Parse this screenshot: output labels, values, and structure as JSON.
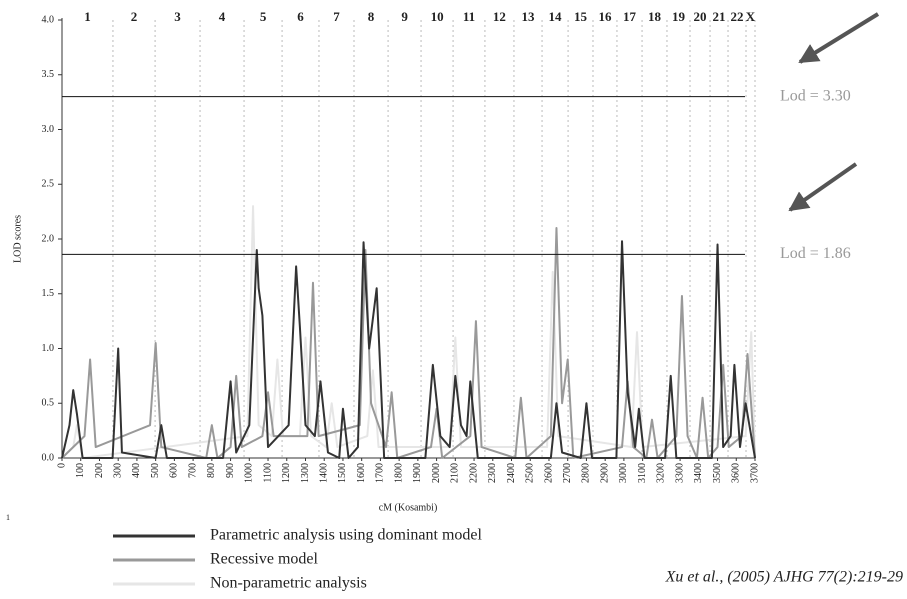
{
  "chart_data": {
    "type": "line",
    "xlabel": "cM (Kosambi)",
    "ylabel": "LOD scores",
    "xlim": [
      0,
      3700
    ],
    "ylim": [
      0,
      4.0
    ],
    "xticks": [
      0,
      100,
      200,
      300,
      400,
      500,
      600,
      700,
      800,
      900,
      1000,
      1100,
      1200,
      1300,
      1400,
      1500,
      1600,
      1700,
      1800,
      1900,
      2000,
      2100,
      2200,
      2300,
      2400,
      2500,
      2600,
      2700,
      2800,
      2900,
      3000,
      3100,
      3200,
      3300,
      3400,
      3500,
      3600,
      3700
    ],
    "yticks": [
      {
        "value": 0,
        "label": "0.0"
      },
      0.5,
      {
        "value": 1,
        "label": "1.0"
      },
      1.5,
      {
        "value": 2,
        "label": "2.0"
      },
      2.5,
      {
        "value": 3,
        "label": "3.0"
      },
      3.5,
      {
        "value": 4,
        "label": "4.0"
      }
    ],
    "chromosome_labels": [
      "1",
      "2",
      "3",
      "4",
      "5",
      "6",
      "7",
      "8",
      "9",
      "10",
      "11",
      "12",
      "13",
      "14",
      "15",
      "16",
      "17",
      "18",
      "19",
      "20",
      "21",
      "22",
      "X"
    ],
    "chromosome_bounds": [
      0,
      272,
      497,
      737,
      972,
      1175,
      1372,
      1559,
      1741,
      1917,
      2088,
      2258,
      2413,
      2563,
      2702,
      2835,
      2963,
      3097,
      3230,
      3353,
      3460,
      3556,
      3652,
      3700
    ],
    "thresholds": [
      {
        "value": 3.3,
        "label": "Lod = 3.30"
      },
      {
        "value": 1.86,
        "label": "Lod = 1.86"
      }
    ],
    "series": [
      {
        "name": "Parametric analysis using dominant model",
        "color": "#333333",
        "x": [
          0,
          40,
          60,
          80,
          110,
          270,
          300,
          320,
          500,
          530,
          560,
          860,
          900,
          930,
          1000,
          1040,
          1050,
          1070,
          1100,
          1210,
          1250,
          1270,
          1300,
          1350,
          1380,
          1420,
          1480,
          1500,
          1530,
          1580,
          1610,
          1640,
          1680,
          1720,
          1940,
          1980,
          2020,
          2070,
          2100,
          2130,
          2160,
          2180,
          2220,
          2610,
          2640,
          2670,
          2770,
          2800,
          2830,
          2960,
          2990,
          3020,
          3060,
          3080,
          3110,
          3220,
          3250,
          3280,
          3470,
          3500,
          3530,
          3570,
          3590,
          3620,
          3650,
          3700
        ],
        "values": [
          0,
          0.3,
          0.62,
          0.4,
          0,
          0,
          1.0,
          0.05,
          0,
          0.3,
          0,
          0,
          0.7,
          0.05,
          0.3,
          1.9,
          1.55,
          1.3,
          0.1,
          0.3,
          1.75,
          1.2,
          0.3,
          0.2,
          0.7,
          0.05,
          0,
          0.45,
          0,
          0.1,
          1.97,
          1.0,
          1.55,
          0,
          0,
          0.85,
          0.2,
          0.1,
          0.75,
          0.3,
          0.2,
          0.7,
          0,
          0,
          0.5,
          0.05,
          0,
          0.5,
          0,
          0,
          1.98,
          0.6,
          0.1,
          0.45,
          0,
          0,
          0.75,
          0,
          0,
          1.95,
          0.1,
          0.2,
          0.85,
          0.1,
          0.5,
          0
        ]
      },
      {
        "name": "Recessive model",
        "color": "#999999",
        "x": [
          0,
          120,
          150,
          180,
          470,
          500,
          530,
          770,
          800,
          830,
          900,
          930,
          960,
          1070,
          1100,
          1130,
          1310,
          1340,
          1370,
          1590,
          1620,
          1650,
          1730,
          1760,
          1790,
          1970,
          2000,
          2030,
          2180,
          2210,
          2240,
          2420,
          2450,
          2480,
          2610,
          2640,
          2670,
          2700,
          2730,
          2990,
          3020,
          3050,
          3120,
          3150,
          3180,
          3280,
          3310,
          3340,
          3390,
          3420,
          3450,
          3500,
          3530,
          3560,
          3630,
          3660,
          3700
        ],
        "values": [
          0,
          0.2,
          0.9,
          0.1,
          0.3,
          1.05,
          0.1,
          0,
          0.3,
          0,
          0.1,
          0.75,
          0.1,
          0.2,
          0.6,
          0.2,
          0.2,
          1.6,
          0.2,
          0.3,
          1.9,
          0.5,
          0.1,
          0.6,
          0,
          0.1,
          0.45,
          0,
          0.2,
          1.25,
          0.1,
          0,
          0.55,
          0,
          0.2,
          2.1,
          0.5,
          0.9,
          0,
          0.1,
          0.7,
          0.1,
          0,
          0.35,
          0,
          0.2,
          1.48,
          0.2,
          0,
          0.55,
          0,
          0.1,
          0.85,
          0.1,
          0.2,
          0.95,
          0
        ]
      },
      {
        "name": "Non-parametric analysis",
        "color": "#e6e6e6",
        "x": [
          0,
          60,
          80,
          110,
          990,
          1020,
          1050,
          1120,
          1150,
          1180,
          1270,
          1300,
          1330,
          1410,
          1440,
          1470,
          1630,
          1660,
          1690,
          2070,
          2100,
          2130,
          2590,
          2620,
          2650,
          3040,
          3070,
          3100,
          3650,
          3680,
          3700
        ],
        "values": [
          0,
          0.1,
          0.3,
          0,
          0.2,
          2.3,
          0.3,
          0.2,
          0.9,
          0.2,
          0.2,
          1.1,
          0.2,
          0.1,
          0.5,
          0.1,
          0.2,
          0.8,
          0.1,
          0.1,
          1.1,
          0.1,
          0.1,
          1.7,
          0.2,
          0.1,
          1.15,
          0.1,
          0.2,
          1.15,
          0
        ]
      }
    ],
    "citation": "Xu et al., (2005) AJHG 77(2):219-29",
    "corner_mark": "1"
  }
}
